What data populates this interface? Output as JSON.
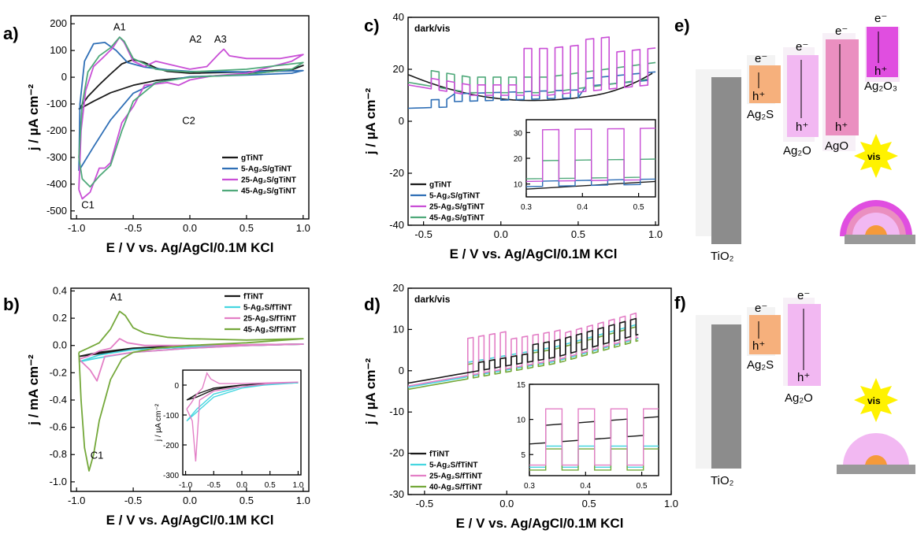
{
  "panels": {
    "a": "a)",
    "b": "b)",
    "c": "c)",
    "d": "d)",
    "e": "e)",
    "f": "f)"
  },
  "colors": {
    "black": "#1a1a1a",
    "blue": "#2f6fb6",
    "magenta": "#c94fd6",
    "green": "#4fa97a",
    "cyan": "#46d6e0",
    "pink": "#e37fc6",
    "olive": "#74a83a",
    "grey": "#8c8c8c",
    "orange": "#f6b07c",
    "lightpink": "#f2b8f2",
    "rose": "#ea8fc0",
    "purple": "#e04ee0"
  },
  "chart_data": [
    {
      "id": "a",
      "type": "line",
      "xlabel": "E / V vs. Ag/AgCl/0.1M KCl",
      "ylabel": "j / µA cm⁻²",
      "xlim": [
        -1.05,
        1.05
      ],
      "ylim": [
        -530,
        230
      ],
      "xticks": [
        -1.0,
        -0.5,
        0.0,
        0.5,
        1.0
      ],
      "xticklabels": [
        "-1.0",
        "-0.5",
        "0.0",
        "0.5",
        "1.0"
      ],
      "yticks": [
        -500,
        -400,
        -300,
        -200,
        -100,
        0,
        100,
        200
      ],
      "yticklabels": [
        "-500",
        "-400",
        "-300",
        "-200",
        "-100",
        "0",
        "100",
        "200"
      ],
      "annotations": [
        {
          "text": "A1",
          "x": -0.62,
          "y": 175
        },
        {
          "text": "A2",
          "x": 0.05,
          "y": 130
        },
        {
          "text": "A3",
          "x": 0.27,
          "y": 130
        },
        {
          "text": "C2",
          "x": -0.01,
          "y": -175
        },
        {
          "text": "C1",
          "x": -0.9,
          "y": -490
        }
      ],
      "legend": {
        "position": "bottom-right"
      },
      "series": [
        {
          "name": "gTiNT",
          "color": "black",
          "points": [
            [
              -0.98,
              -120
            ],
            [
              -0.9,
              -72
            ],
            [
              -0.8,
              -28
            ],
            [
              -0.7,
              12
            ],
            [
              -0.6,
              50
            ],
            [
              -0.5,
              66
            ],
            [
              -0.4,
              55
            ],
            [
              -0.3,
              35
            ],
            [
              -0.2,
              22
            ],
            [
              0.0,
              15
            ],
            [
              0.5,
              20
            ],
            [
              0.9,
              30
            ],
            [
              1.0,
              44
            ],
            [
              0.9,
              28
            ],
            [
              0.5,
              12
            ],
            [
              0.0,
              0
            ],
            [
              -0.3,
              -12
            ],
            [
              -0.5,
              -30
            ],
            [
              -0.7,
              -58
            ],
            [
              -0.85,
              -90
            ],
            [
              -0.98,
              -120
            ]
          ]
        },
        {
          "name": "5-Ag₂S/gTiNT",
          "color": "blue",
          "points": [
            [
              -0.98,
              -350
            ],
            [
              -0.97,
              -100
            ],
            [
              -0.93,
              60
            ],
            [
              -0.85,
              125
            ],
            [
              -0.75,
              130
            ],
            [
              -0.65,
              100
            ],
            [
              -0.55,
              55
            ],
            [
              -0.4,
              38
            ],
            [
              -0.2,
              28
            ],
            [
              0.0,
              22
            ],
            [
              0.5,
              20
            ],
            [
              1.0,
              25
            ],
            [
              0.9,
              15
            ],
            [
              0.5,
              8
            ],
            [
              0.0,
              2
            ],
            [
              -0.3,
              -20
            ],
            [
              -0.5,
              -60
            ],
            [
              -0.7,
              -160
            ],
            [
              -0.85,
              -260
            ],
            [
              -0.98,
              -350
            ]
          ]
        },
        {
          "name": "25-Ag₂S/gTiNT",
          "color": "magenta",
          "points": [
            [
              -0.98,
              -420
            ],
            [
              -0.96,
              -200
            ],
            [
              -0.92,
              -50
            ],
            [
              -0.85,
              40
            ],
            [
              -0.75,
              80
            ],
            [
              -0.68,
              110
            ],
            [
              -0.62,
              150
            ],
            [
              -0.58,
              130
            ],
            [
              -0.5,
              60
            ],
            [
              -0.4,
              40
            ],
            [
              -0.3,
              60
            ],
            [
              -0.2,
              50
            ],
            [
              0.0,
              30
            ],
            [
              0.15,
              40
            ],
            [
              0.25,
              85
            ],
            [
              0.3,
              105
            ],
            [
              0.35,
              80
            ],
            [
              0.5,
              70
            ],
            [
              0.8,
              70
            ],
            [
              1.0,
              85
            ],
            [
              0.9,
              60
            ],
            [
              0.5,
              15
            ],
            [
              0.2,
              5
            ],
            [
              0.0,
              -10
            ],
            [
              -0.1,
              -30
            ],
            [
              -0.2,
              -20
            ],
            [
              -0.4,
              -30
            ],
            [
              -0.5,
              -110
            ],
            [
              -0.6,
              -170
            ],
            [
              -0.7,
              -320
            ],
            [
              -0.75,
              -340
            ],
            [
              -0.8,
              -340
            ],
            [
              -0.88,
              -430
            ],
            [
              -0.95,
              -455
            ],
            [
              -0.98,
              -420
            ]
          ]
        },
        {
          "name": "45-Ag₂S/gTiNT",
          "color": "green",
          "points": [
            [
              -0.98,
              -300
            ],
            [
              -0.95,
              -100
            ],
            [
              -0.9,
              20
            ],
            [
              -0.8,
              80
            ],
            [
              -0.7,
              110
            ],
            [
              -0.62,
              150
            ],
            [
              -0.58,
              135
            ],
            [
              -0.5,
              70
            ],
            [
              -0.4,
              50
            ],
            [
              -0.3,
              30
            ],
            [
              -0.2,
              25
            ],
            [
              0.0,
              20
            ],
            [
              0.5,
              30
            ],
            [
              1.0,
              55
            ],
            [
              0.9,
              30
            ],
            [
              0.5,
              10
            ],
            [
              0.0,
              0
            ],
            [
              -0.3,
              -20
            ],
            [
              -0.5,
              -90
            ],
            [
              -0.6,
              -200
            ],
            [
              -0.7,
              -330
            ],
            [
              -0.8,
              -370
            ],
            [
              -0.88,
              -410
            ],
            [
              -0.95,
              -380
            ],
            [
              -0.98,
              -300
            ]
          ]
        }
      ]
    },
    {
      "id": "b",
      "type": "line",
      "xlabel": "E / V vs. Ag/AgCl/0.1M KCl",
      "ylabel": "j / mA cm⁻²",
      "xlim": [
        -1.05,
        1.05
      ],
      "ylim": [
        -1.07,
        0.42
      ],
      "xticks": [
        -1.0,
        -0.5,
        0.0,
        0.5,
        1.0
      ],
      "xticklabels": [
        "-1.0",
        "-0.5",
        "0.0",
        "0.5",
        "1.0"
      ],
      "yticks": [
        -1.0,
        -0.8,
        -0.6,
        -0.4,
        -0.2,
        0.0,
        0.2,
        0.4
      ],
      "yticklabels": [
        "-1.0",
        "-0.8",
        "-0.6",
        "-0.4",
        "-0.2",
        "0.0",
        "0.2",
        "0.4"
      ],
      "annotations": [
        {
          "text": "A1",
          "x": -0.65,
          "y": 0.33
        },
        {
          "text": "C1",
          "x": -0.82,
          "y": -0.83
        }
      ],
      "legend": {
        "position": "top-right"
      },
      "series": [
        {
          "name": "fTiNT",
          "color": "black",
          "points": [
            [
              -0.98,
              -0.08
            ],
            [
              -0.8,
              -0.05
            ],
            [
              -0.5,
              -0.02
            ],
            [
              0.0,
              0.0
            ],
            [
              1.0,
              0.01
            ],
            [
              0.5,
              0.0
            ],
            [
              0.0,
              -0.01
            ],
            [
              -0.5,
              -0.03
            ],
            [
              -0.8,
              -0.06
            ],
            [
              -0.98,
              -0.08
            ]
          ]
        },
        {
          "name": "5-Ag₂S/fTiNT",
          "color": "cyan",
          "points": [
            [
              -0.98,
              -0.12
            ],
            [
              -0.8,
              -0.07
            ],
            [
              -0.5,
              -0.03
            ],
            [
              0.0,
              -0.01
            ],
            [
              1.0,
              0.01
            ],
            [
              0.5,
              0.0
            ],
            [
              0.0,
              -0.02
            ],
            [
              -0.5,
              -0.05
            ],
            [
              -0.8,
              -0.09
            ],
            [
              -0.98,
              -0.12
            ]
          ]
        },
        {
          "name": "25-Ag₂S/fTiNT",
          "color": "pink",
          "points": [
            [
              -0.98,
              -0.1
            ],
            [
              -0.9,
              -0.08
            ],
            [
              -0.8,
              -0.04
            ],
            [
              -0.7,
              -0.02
            ],
            [
              -0.62,
              0.05
            ],
            [
              -0.55,
              0.02
            ],
            [
              -0.4,
              0.0
            ],
            [
              0.0,
              0.0
            ],
            [
              1.0,
              0.01
            ],
            [
              0.5,
              0.0
            ],
            [
              0.0,
              -0.02
            ],
            [
              -0.5,
              -0.05
            ],
            [
              -0.75,
              -0.08
            ],
            [
              -0.82,
              -0.26
            ],
            [
              -0.88,
              -0.18
            ],
            [
              -0.98,
              -0.1
            ]
          ]
        },
        {
          "name": "45-Ag₂S/fTiNT",
          "color": "olive",
          "points": [
            [
              -0.98,
              -0.05
            ],
            [
              -0.9,
              -0.02
            ],
            [
              -0.8,
              0.02
            ],
            [
              -0.7,
              0.12
            ],
            [
              -0.62,
              0.25
            ],
            [
              -0.57,
              0.22
            ],
            [
              -0.5,
              0.13
            ],
            [
              -0.4,
              0.09
            ],
            [
              -0.2,
              0.06
            ],
            [
              0.0,
              0.05
            ],
            [
              0.5,
              0.04
            ],
            [
              1.0,
              0.05
            ],
            [
              0.5,
              0.02
            ],
            [
              0.0,
              0.0
            ],
            [
              -0.3,
              -0.02
            ],
            [
              -0.5,
              -0.05
            ],
            [
              -0.6,
              -0.1
            ],
            [
              -0.7,
              -0.25
            ],
            [
              -0.8,
              -0.55
            ],
            [
              -0.85,
              -0.8
            ],
            [
              -0.89,
              -0.92
            ],
            [
              -0.93,
              -0.75
            ],
            [
              -0.96,
              -0.4
            ],
            [
              -0.98,
              -0.05
            ]
          ]
        }
      ],
      "inset": {
        "ylabel": "j / µA cm⁻²",
        "xlim": [
          -1.05,
          1.05
        ],
        "ylim": [
          -300,
          50
        ],
        "xticks": [
          -1.0,
          -0.5,
          0.0,
          0.5,
          1.0
        ],
        "xticklabels": [
          "-1.0",
          "-0.5",
          "0.0",
          "0.5",
          "1.0"
        ],
        "yticks": [
          -300,
          -200,
          -100,
          0
        ],
        "yticklabels": [
          "-300",
          "-200",
          "-100",
          "0"
        ]
      }
    },
    {
      "id": "c",
      "type": "line",
      "xlabel": "E / V vs. Ag/AgCl/0.1M KCl",
      "ylabel": "j / µA cm⁻²",
      "annotation": "dark/vis",
      "xlim": [
        -0.6,
        1.02
      ],
      "ylim": [
        -40,
        40
      ],
      "xticks": [
        -0.5,
        0.0,
        0.5,
        1.0
      ],
      "xticklabels": [
        "-0.5",
        "0.0",
        "0.5",
        "1.0"
      ],
      "yticks": [
        -40,
        -20,
        0,
        20,
        40
      ],
      "yticklabels": [
        "-40",
        "-20",
        "0",
        "20",
        "40"
      ],
      "legend": {
        "position": "bottom-left"
      },
      "series": [
        {
          "name": "gTiNT",
          "color": "black"
        },
        {
          "name": "5-Ag₂S/gTiNT",
          "color": "blue"
        },
        {
          "name": "25-Ag₂S/gTiNT",
          "color": "magenta"
        },
        {
          "name": "45-Ag₂S/gTiNT",
          "color": "green"
        }
      ],
      "inset": {
        "xlim": [
          0.3,
          0.53
        ],
        "ylim": [
          5,
          35
        ],
        "xticks": [
          0.3,
          0.4,
          0.5
        ],
        "xticklabels": [
          "0.3",
          "0.4",
          "0.5"
        ],
        "yticks": [
          10,
          20,
          30
        ],
        "yticklabels": [
          "10",
          "20",
          "30"
        ]
      }
    },
    {
      "id": "d",
      "type": "line",
      "xlabel": "E / V vs. Ag/AgCl/0.1M KCl",
      "ylabel": "j / µA cm⁻²",
      "annotation": "dark/vis",
      "xlim": [
        -0.6,
        1.0
      ],
      "ylim": [
        -30,
        20
      ],
      "xticks": [
        -0.5,
        0.0,
        0.5,
        1.0
      ],
      "xticklabels": [
        "-0.5",
        "0.0",
        "0.5",
        "1.0"
      ],
      "yticks": [
        -30,
        -20,
        -10,
        0,
        10,
        20
      ],
      "yticklabels": [
        "-30",
        "-20",
        "-10",
        "0",
        "10",
        "20"
      ],
      "legend": {
        "position": "bottom-left"
      },
      "series": [
        {
          "name": "fTiNT",
          "color": "black"
        },
        {
          "name": "5-Ag₂S/fTiNT",
          "color": "cyan"
        },
        {
          "name": "25-Ag₂S/fTiNT",
          "color": "pink"
        },
        {
          "name": "40-Ag₂S/fTiNT",
          "color": "olive"
        }
      ],
      "inset": {
        "xlim": [
          0.3,
          0.53
        ],
        "ylim": [
          2,
          15
        ],
        "xticks": [
          0.3,
          0.4,
          0.5
        ],
        "xticklabels": [
          "0.3",
          "0.4",
          "0.5"
        ],
        "yticks": [
          5,
          10,
          15
        ],
        "yticklabels": [
          "5",
          "10",
          "15"
        ]
      }
    }
  ],
  "diagram_e": {
    "labels": {
      "tio2": "TiO₂",
      "ag2s": "Ag₂S",
      "ag2o": "Ag₂O",
      "ago": "AgO",
      "ag2o3": "Ag₂O₃",
      "electron": "e⁻",
      "hole": "h⁺",
      "vis": "vis"
    }
  },
  "diagram_f": {
    "labels": {
      "tio2": "TiO₂",
      "ag2s": "Ag₂S",
      "ag2o": "Ag₂O",
      "electron": "e⁻",
      "hole": "h⁺",
      "vis": "vis"
    }
  }
}
